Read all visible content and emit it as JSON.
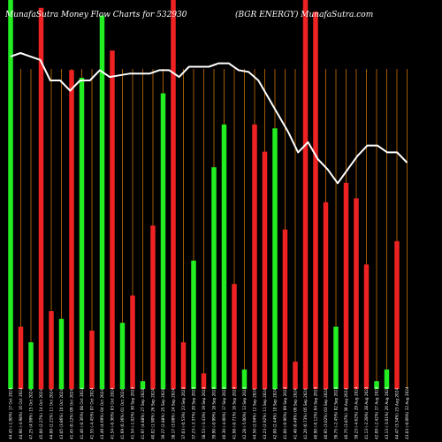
{
  "chart_data": {
    "type": "bar",
    "title": "MunafaSutra  Money Flow  Charts for 532930",
    "subtitle": "(BGR ENERGY) MunafaSutra.com",
    "background": "#000000",
    "colors": {
      "up": "#22ee22",
      "down": "#ee2222",
      "line": "#ffffff",
      "grid": "#a05a00"
    },
    "categories": [
      "44.45 (-1.00%) 17 Oct 2024",
      "44.90 (-4.98%) 16 Oct 2024",
      "47.25 (4.99%) 15 Oct 2024",
      "45.00 (2.27%) 14 Oct 2024",
      "44.00 (2.21%) 11 Oct 2024",
      "43.05 (3.86%) 10 Oct 2024",
      "41.45 (0.12%) 09 Oct 2024",
      "41.40 (-0.36%) 08 Oct 2024",
      "41.55 (-4.45%) 07 Oct 2024",
      "43.49 (4.69%) 04 Oct 2024",
      "41.54 (-0.36%) 03 Oct 2024",
      "41.69 (0.36%) 01 Oct 2024",
      "41.54 (-1.02%) 30 Sep 2024",
      "41.97 (4.88%) 27 Sep 2024",
      "40.02 (1.90%) 26 Sep 2024",
      "39.27 (2.88%) 25 Sep 2024",
      "38.17 (3.08%) 24 Sep 2024",
      "37.03 (-0.53%) 23 Sep 2024",
      "37.23 (-3.37%) 20 Sep 2024",
      "38.53 (-3.43%) 19 Sep 2024",
      "39.90 (-0.99%) 18 Sep 2024",
      "40.30 (-4.00%) 17 Sep 2024",
      "41.98 (-0.71%) 16 Sep 2024",
      "42.28 (-5.00%) 13 Sep 2024",
      "44.50 (2.94%) 12 Sep 2024",
      "43.23 (2.92%) 11 Sep 2024",
      "42.00 (2.44%) 10 Sep 2024",
      "41.00 (-0.96%) 09 Sep 2024",
      "41.40 (0.49%) 06 Sep 2024",
      "41.20 (0.73%) 05 Sep 2024",
      "40.90 (-0.12%) 04 Sep 2024",
      "40.95 (3.02%) 03 Sep 2024",
      "39.75 (-2.45%) 02 Sep 2024",
      "40.75 (3.87%) 30 Aug 2024",
      "39.23 (-4.62%) 29 Aug 2024",
      "41.13 (-2.28%) 28 Aug 2024",
      "42.09 (-2.42%) 27 Aug 2024",
      "43.13 (-3.01%) 26 Aug 2024",
      "44.47 (3.34%) 23 Aug 2024",
      "43.03 (-0.09%) 22 Aug 2024"
    ],
    "bar_direction": [
      "up",
      "down",
      "up",
      "down",
      "down",
      "up",
      "down",
      "up",
      "down",
      "up",
      "down",
      "up",
      "down",
      "up",
      "down",
      "up",
      "down",
      "down",
      "up",
      "down",
      "up",
      "up",
      "down",
      "up",
      "down",
      "down",
      "up",
      "down",
      "down",
      "down",
      "down",
      "down",
      "up",
      "down",
      "down",
      "down",
      "up",
      "up",
      "down",
      "up"
    ],
    "flow": [
      1.0,
      0.16,
      0.12,
      0.98,
      0.2,
      0.18,
      0.82,
      0.8,
      0.15,
      0.96,
      0.87,
      0.17,
      0.24,
      0.02,
      0.42,
      0.76,
      1.0,
      0.12,
      0.33,
      0.04,
      0.57,
      0.68,
      0.27,
      0.05,
      0.68,
      0.61,
      0.67,
      0.41,
      0.07,
      1.0,
      0.97,
      0.48,
      0.16,
      0.53,
      0.49,
      0.32,
      0.02,
      0.05,
      0.38,
      0.0
    ],
    "price_line": [
      39,
      40,
      39,
      38,
      32,
      32,
      29,
      32,
      32,
      35,
      33,
      33.5,
      34,
      34,
      34,
      35,
      35,
      33,
      36,
      36,
      36,
      37,
      37,
      35,
      34.5,
      32,
      27,
      22,
      17,
      11,
      14,
      9,
      6,
      2,
      6,
      10,
      13,
      13,
      11,
      11,
      8
    ]
  }
}
